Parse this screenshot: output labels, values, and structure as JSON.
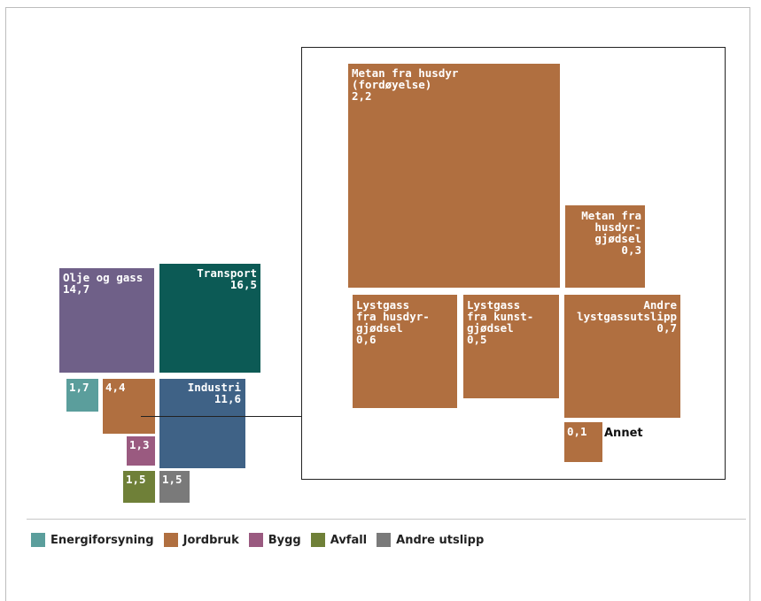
{
  "colors": {
    "energiforsyning": "#5b9e9c",
    "jordbruk": "#b06f40",
    "bygg": "#9a5a80",
    "avfall": "#6f8038",
    "andre": "#7a7a7a",
    "olje": "#6f6088",
    "transport": "#0c5a55",
    "industri": "#3f6286"
  },
  "labels": {
    "olje": "Olje og gass\n14,7",
    "transport": "Transport\n16,5",
    "industri": "Industri\n11,6",
    "energi": "1,7",
    "jordbruk": "4,4",
    "bygg": "1,3",
    "avfall": "1,5",
    "andre": "1,5",
    "metan_fordoyelse": "Metan fra husdyr\n(fordøyelse)\n2,2",
    "metan_gjodsel": "Metan fra\nhusdyr-\ngjødsel\n0,3",
    "lystgass_husdyr": "Lystgass\nfra husdyr-\ngjødsel\n0,6",
    "lystgass_kunst": "Lystgass\nfra kunst-\ngjødsel\n0,5",
    "andre_lystgass": "Andre\nlystgassutslipp\n0,7",
    "annet_value": "0,1",
    "annet_name": "Annet"
  },
  "legend": [
    {
      "key": "energiforsyning",
      "label": "Energiforsyning"
    },
    {
      "key": "jordbruk",
      "label": "Jordbruk"
    },
    {
      "key": "bygg",
      "label": "Bygg"
    },
    {
      "key": "avfall",
      "label": "Avfall"
    },
    {
      "key": "andre",
      "label": "Andre utslipp"
    }
  ],
  "chart_data": {
    "type": "treemap",
    "series": [
      {
        "name": "Olje og gass",
        "value": 14.7
      },
      {
        "name": "Transport",
        "value": 16.5
      },
      {
        "name": "Industri",
        "value": 11.6
      },
      {
        "name": "Energiforsyning",
        "value": 1.7
      },
      {
        "name": "Jordbruk",
        "value": 4.4
      },
      {
        "name": "Bygg",
        "value": 1.3
      },
      {
        "name": "Avfall",
        "value": 1.5
      },
      {
        "name": "Andre utslipp",
        "value": 1.5
      }
    ],
    "detail": {
      "parent": "Jordbruk",
      "items": [
        {
          "name": "Metan fra husdyr (fordøyelse)",
          "value": 2.2
        },
        {
          "name": "Metan fra husdyrgjødsel",
          "value": 0.3
        },
        {
          "name": "Lystgass fra husdyrgjødsel",
          "value": 0.6
        },
        {
          "name": "Lystgass fra kunstgjødsel",
          "value": 0.5
        },
        {
          "name": "Andre lystgassutslipp",
          "value": 0.7
        },
        {
          "name": "Annet",
          "value": 0.1
        }
      ]
    }
  }
}
